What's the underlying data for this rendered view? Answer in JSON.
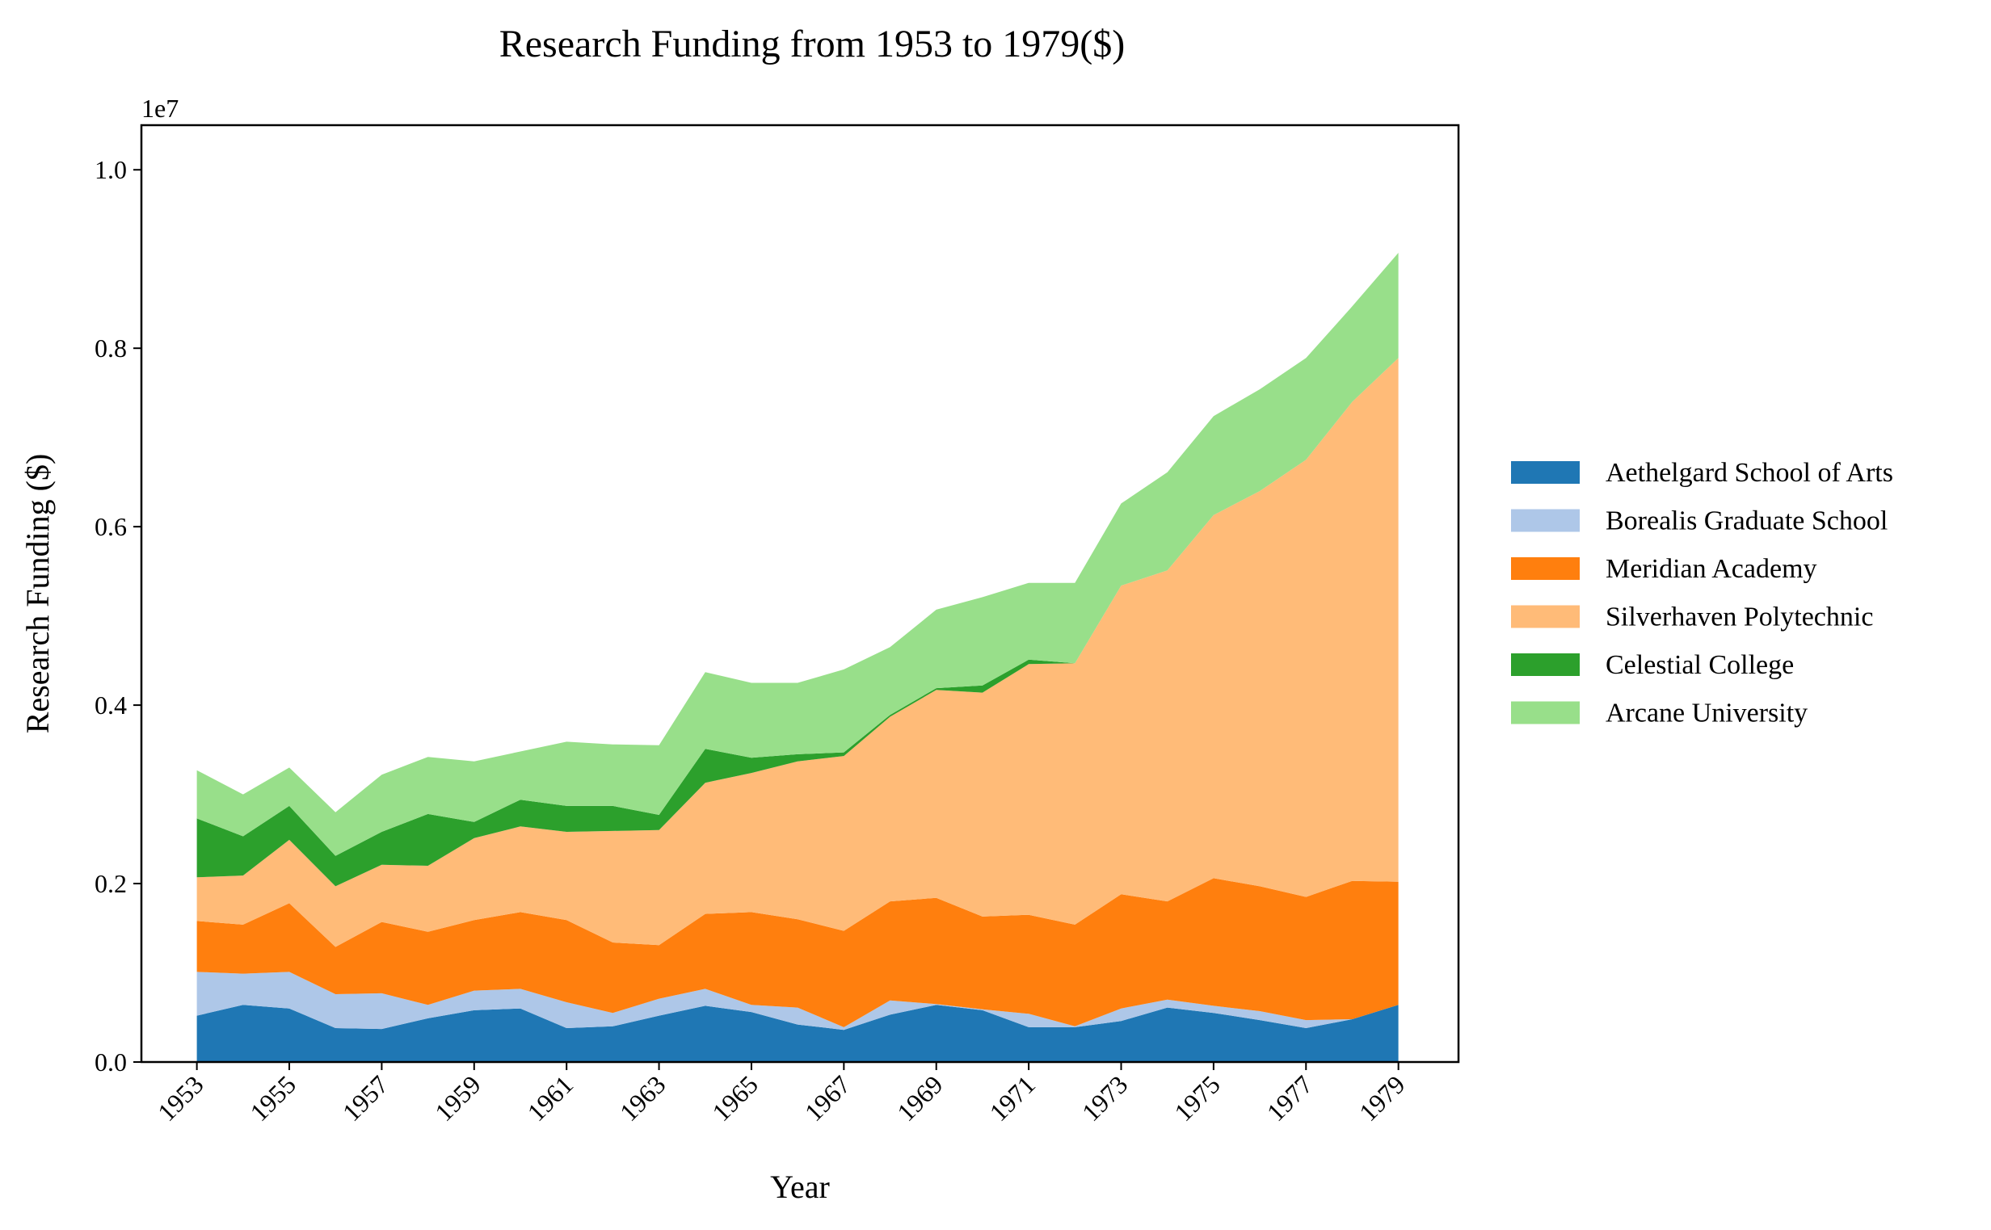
{
  "chart_data": {
    "type": "area",
    "stacked": true,
    "title": "Research Funding from 1953 to 1979($)",
    "xlabel": "Year",
    "ylabel": "Research Funding ($)",
    "y_offset_label": "1e7",
    "xlim": [
      1951.8,
      1980.3
    ],
    "ylim": [
      0,
      10500000
    ],
    "x_ticks": [
      "1953",
      "1955",
      "1957",
      "1959",
      "1961",
      "1963",
      "1965",
      "1967",
      "1969",
      "1971",
      "1973",
      "1975",
      "1977",
      "1979"
    ],
    "y_ticks": [
      "0.0",
      "0.2",
      "0.4",
      "0.6",
      "0.8",
      "1.0"
    ],
    "y_tick_values": [
      0,
      2000000,
      4000000,
      6000000,
      8000000,
      10000000
    ],
    "grid": false,
    "legend_position": "right",
    "x": [
      1953,
      1954,
      1955,
      1956,
      1957,
      1958,
      1959,
      1960,
      1961,
      1962,
      1963,
      1964,
      1965,
      1966,
      1967,
      1968,
      1969,
      1970,
      1971,
      1972,
      1973,
      1974,
      1975,
      1976,
      1977,
      1978,
      1979
    ],
    "series": [
      {
        "name": "Aethelgard School of Arts",
        "color": "#1f77b4",
        "values": [
          520000,
          640000,
          600000,
          380000,
          370000,
          490000,
          580000,
          600000,
          380000,
          400000,
          520000,
          630000,
          560000,
          420000,
          360000,
          530000,
          640000,
          580000,
          390000,
          390000,
          460000,
          610000,
          550000,
          470000,
          380000,
          480000,
          640000
        ]
      },
      {
        "name": "Borealis Graduate School",
        "color": "#aec7e8",
        "values": [
          490000,
          350000,
          410000,
          380000,
          400000,
          150000,
          220000,
          220000,
          290000,
          150000,
          190000,
          190000,
          80000,
          190000,
          30000,
          160000,
          10000,
          10000,
          150000,
          10000,
          140000,
          90000,
          80000,
          100000,
          90000,
          0,
          0
        ]
      },
      {
        "name": "Meridian Academy",
        "color": "#ff7f0e",
        "values": [
          570000,
          550000,
          770000,
          530000,
          800000,
          820000,
          790000,
          860000,
          920000,
          790000,
          600000,
          840000,
          1040000,
          990000,
          1080000,
          1110000,
          1190000,
          1040000,
          1110000,
          1140000,
          1280000,
          1100000,
          1430000,
          1400000,
          1380000,
          1550000,
          1380000
        ]
      },
      {
        "name": "Silverhaven Polytechnic",
        "color": "#ffbb78",
        "values": [
          490000,
          550000,
          710000,
          680000,
          640000,
          740000,
          920000,
          960000,
          990000,
          1250000,
          1290000,
          1470000,
          1560000,
          1770000,
          1960000,
          2070000,
          2330000,
          2510000,
          2810000,
          2930000,
          3460000,
          3710000,
          4070000,
          4430000,
          4900000,
          5370000,
          5870000
        ]
      },
      {
        "name": "Celestial College",
        "color": "#2ca02c",
        "values": [
          660000,
          440000,
          380000,
          340000,
          370000,
          580000,
          180000,
          300000,
          290000,
          280000,
          170000,
          380000,
          170000,
          80000,
          40000,
          20000,
          20000,
          80000,
          50000,
          0,
          0,
          0,
          0,
          0,
          0,
          0,
          0
        ]
      },
      {
        "name": "Arcane University",
        "color": "#98df8a",
        "values": [
          540000,
          470000,
          430000,
          490000,
          640000,
          640000,
          680000,
          540000,
          720000,
          690000,
          780000,
          860000,
          840000,
          800000,
          930000,
          760000,
          880000,
          990000,
          860000,
          900000,
          920000,
          1100000,
          1110000,
          1140000,
          1140000,
          1070000,
          1180000
        ]
      }
    ]
  }
}
